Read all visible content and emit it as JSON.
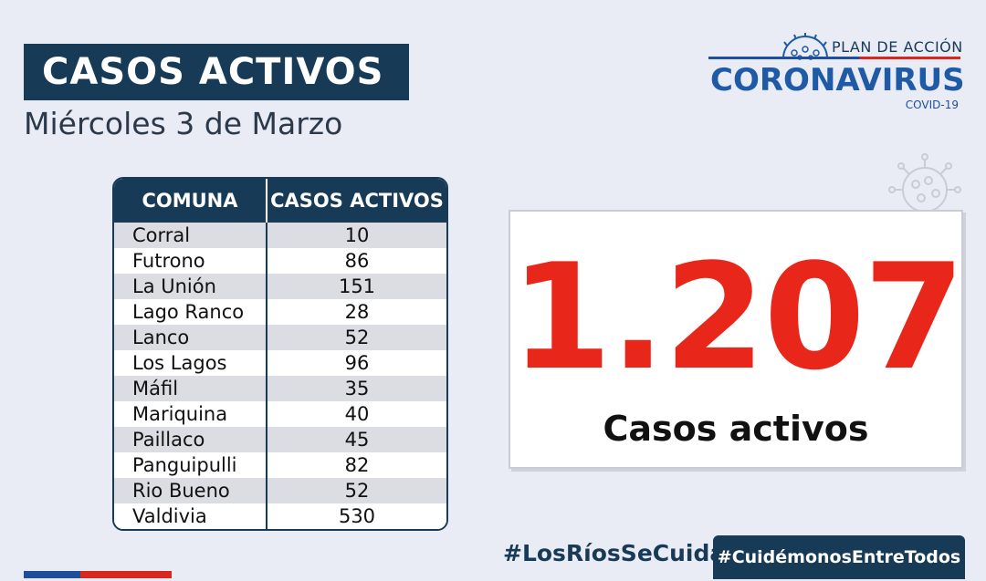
{
  "header": {
    "title": "CASOS ACTIVOS",
    "date": "Miércoles 3 de Marzo"
  },
  "logo": {
    "plan": "PLAN DE ACCIÓN",
    "main": "CORONAVIRUS",
    "sub": "COVID-19"
  },
  "table": {
    "headers": [
      "COMUNA",
      "CASOS ACTIVOS"
    ],
    "rows": [
      {
        "comuna": "Corral",
        "casos": "10"
      },
      {
        "comuna": "Futrono",
        "casos": "86"
      },
      {
        "comuna": "La Unión",
        "casos": "151"
      },
      {
        "comuna": "Lago Ranco",
        "casos": "28"
      },
      {
        "comuna": "Lanco",
        "casos": "52"
      },
      {
        "comuna": "Los Lagos",
        "casos": "96"
      },
      {
        "comuna": "Máfil",
        "casos": "35"
      },
      {
        "comuna": "Mariquina",
        "casos": "40"
      },
      {
        "comuna": "Paillaco",
        "casos": "45"
      },
      {
        "comuna": "Panguipulli",
        "casos": "82"
      },
      {
        "comuna": "Rio Bueno",
        "casos": "52"
      },
      {
        "comuna": "Valdivia",
        "casos": "530"
      }
    ]
  },
  "total": {
    "value": "1.207",
    "label": "Casos activos"
  },
  "hashtags": {
    "left": "#LosRíosSeCuida",
    "right": "#CuidémonosEntreTodos"
  },
  "colors": {
    "navy": "#173a57",
    "red": "#e8261a",
    "blue": "#1f5aa6",
    "background": "#e9ebf5"
  }
}
